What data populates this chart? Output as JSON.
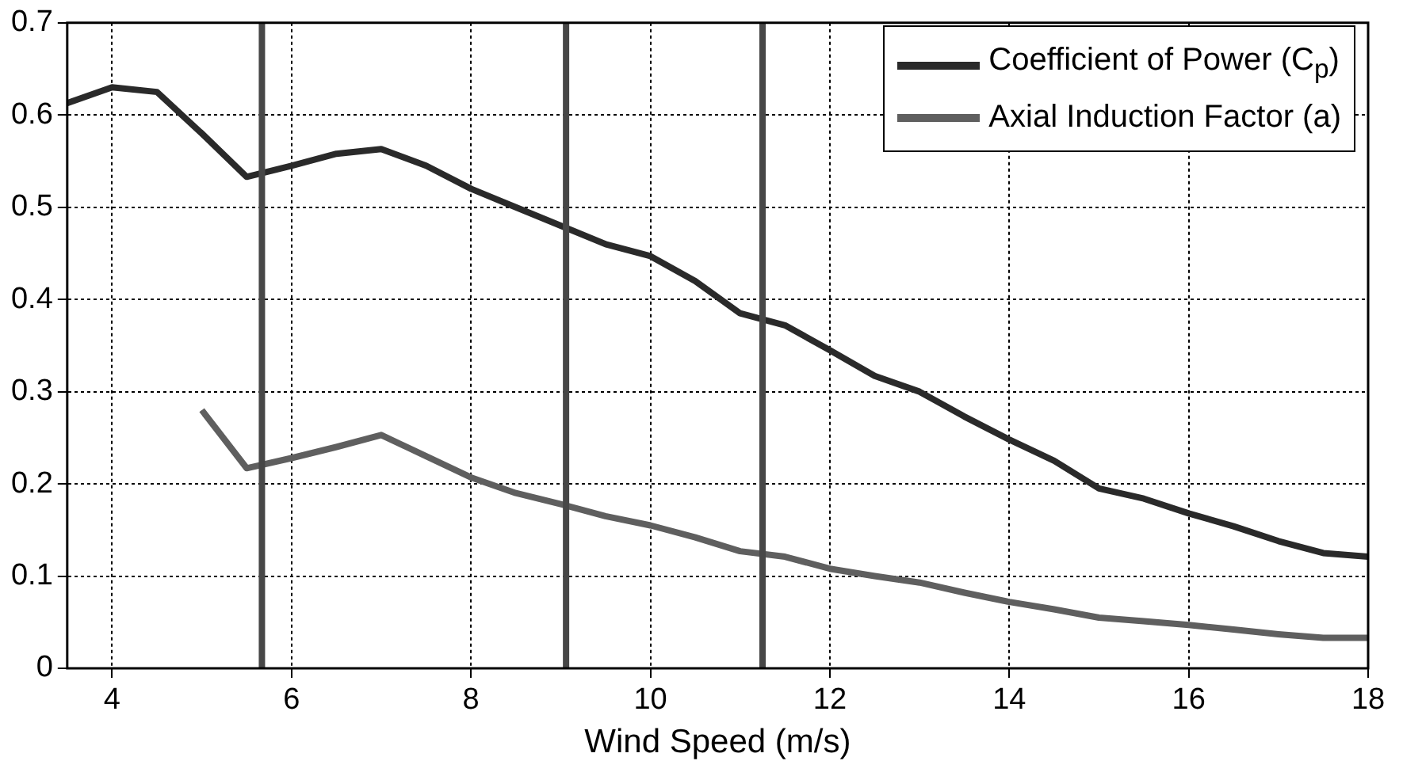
{
  "chart_data": {
    "type": "line",
    "xlabel": "Wind Speed (m/s)",
    "xlim": [
      3.5,
      18
    ],
    "xticks": [
      4,
      6,
      8,
      10,
      12,
      14,
      16,
      18
    ],
    "ylim": [
      0,
      0.7
    ],
    "yticks": [
      0,
      0.1,
      0.2,
      0.3,
      0.4,
      0.5,
      0.6,
      0.7
    ],
    "grid": true,
    "legend": "top right",
    "marker": "none",
    "line_style": "solid",
    "series": [
      {
        "name": "Coefficient of Power (C$_{p}$)",
        "color": "#2a2a2a",
        "x": [
          3.5,
          4,
          4.5,
          5,
          5.5,
          6,
          6.5,
          7,
          7.5,
          8,
          8.5,
          9,
          9.5,
          10,
          10.5,
          11,
          11.5,
          12,
          12.5,
          13,
          13.5,
          14,
          14.5,
          15,
          15.5,
          16,
          16.5,
          17,
          17.5,
          18
        ],
        "values": [
          0.613,
          0.63,
          0.625,
          0.58,
          0.533,
          0.545,
          0.558,
          0.563,
          0.545,
          0.52,
          0.5,
          0.48,
          0.46,
          0.447,
          0.42,
          0.385,
          0.372,
          0.345,
          0.317,
          0.3,
          0.273,
          0.248,
          0.225,
          0.195,
          0.184,
          0.168,
          0.154,
          0.138,
          0.125,
          0.121
        ]
      },
      {
        "name": "Axial Induction Factor (a)",
        "color": "#5f5f5f",
        "x": [
          5,
          5.5,
          6,
          6.5,
          7,
          7.5,
          8,
          8.5,
          9,
          9.5,
          10,
          10.5,
          11,
          11.5,
          12,
          12.5,
          13,
          13.5,
          14,
          14.5,
          15,
          15.5,
          16,
          16.5,
          17,
          17.5,
          18
        ],
        "values": [
          0.28,
          0.217,
          0.228,
          0.24,
          0.253,
          0.23,
          0.207,
          0.19,
          0.178,
          0.165,
          0.155,
          0.142,
          0.127,
          0.121,
          0.108,
          0.1,
          0.093,
          0.082,
          0.072,
          0.064,
          0.055,
          0.051,
          0.047,
          0.042,
          0.037,
          0.033,
          0.033
        ]
      }
    ],
    "ref_lines": [
      {
        "axis": "x",
        "value": 5.67,
        "color": "#474747"
      },
      {
        "axis": "x",
        "value": 9.06,
        "color": "#474747"
      },
      {
        "axis": "x",
        "value": 11.25,
        "color": "#474747"
      }
    ]
  }
}
